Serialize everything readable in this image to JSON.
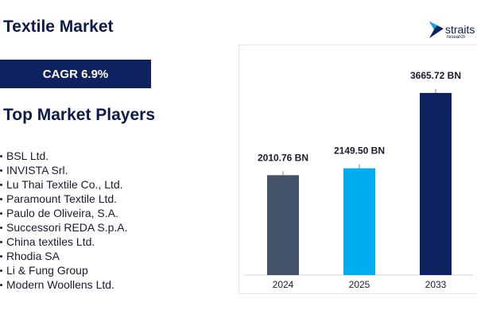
{
  "header": {
    "title": "Textile Market"
  },
  "logo": {
    "name": "straits",
    "tagline": "research"
  },
  "cagr": {
    "label": "CAGR 6.9%"
  },
  "players": {
    "title": "Top Market Players",
    "items": [
      "BSL Ltd.",
      "INVISTA Srl.",
      "Lu Thai Textile Co., Ltd.",
      "Paramount Textile Ltd.",
      "Paulo de Oliveira, S.A.",
      "Successori REDA S.p.A.",
      "China textiles Ltd.",
      "Rhodia SA",
      "Li & Fung Group",
      "Modern Woollens Ltd."
    ]
  },
  "chart_data": {
    "type": "bar",
    "categories": [
      "2024",
      "2025",
      "2033"
    ],
    "values": [
      2010.76,
      2149.5,
      3665.72
    ],
    "data_labels": [
      "2010.76 BN",
      "2149.50 BN",
      "3665.72 BN"
    ],
    "colors": [
      "#44536a",
      "#00adef",
      "#0e2260"
    ],
    "ylim": [
      0,
      4000
    ],
    "grid": false,
    "legend": "none",
    "title": "",
    "xlabel": "",
    "ylabel": ""
  }
}
